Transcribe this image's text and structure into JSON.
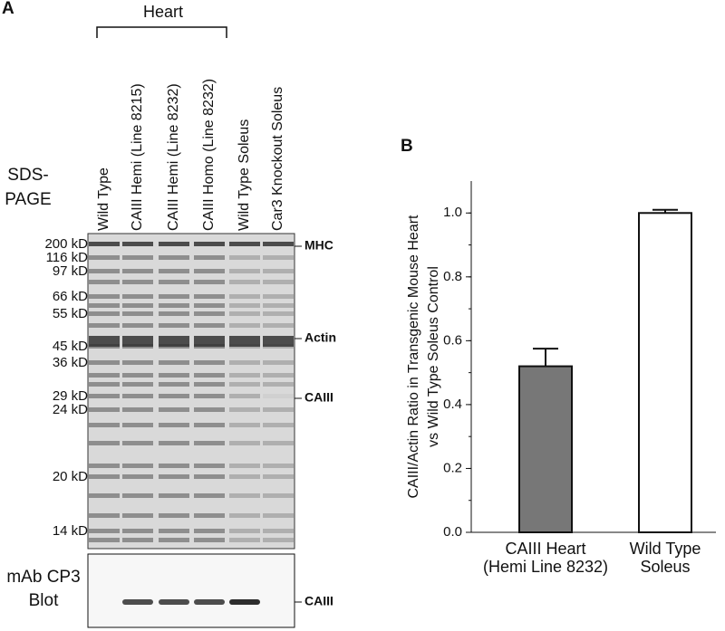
{
  "panel_a": {
    "letter": "A",
    "group": "Heart",
    "method": "SDS-\nPAGE",
    "lanes": [
      "Wild Type",
      "CAIII Hemi (Line 8215)",
      "CAIII Hemi (Line 8232)",
      "CAIII Homo (Line 8232)",
      "Wild Type Soleus",
      "Car3 Knockout Soleus"
    ],
    "markers": [
      "200 kD",
      "116 kD",
      "97 kD",
      "66 kD",
      "55 kD",
      "45 kD",
      "36 kD",
      "29 kD",
      "24 kD",
      "20 kD",
      "14 kD"
    ],
    "proteins": [
      "MHC",
      "Actin",
      "CAIII"
    ],
    "blot_title": "mAb CP3\nBlot",
    "blot_band": "CAIII"
  },
  "chart_data": {
    "type": "bar",
    "letter": "B",
    "y_label": "CAIII/Actin Ratio in Transgenic Mouse Heart\nvs Wild Type Soleus Control",
    "categories": [
      "CAIII Heart\n(Hemi Line 8232)",
      "Wild Type\nSoleus"
    ],
    "values": [
      0.52,
      1.0
    ],
    "errors": [
      0.055,
      0.01
    ],
    "colors": [
      "#777777",
      "#ffffff"
    ],
    "ylim": [
      0,
      1.1
    ],
    "yticks": [
      {
        "value": 0,
        "label": "0.0"
      },
      {
        "value": 0.2,
        "label": "0.2"
      },
      {
        "value": 0.4,
        "label": "0.4"
      },
      {
        "value": 0.6,
        "label": "0.6"
      },
      {
        "value": 0.8,
        "label": "0.8"
      },
      {
        "value": 1.0,
        "label": "1.0"
      }
    ]
  }
}
